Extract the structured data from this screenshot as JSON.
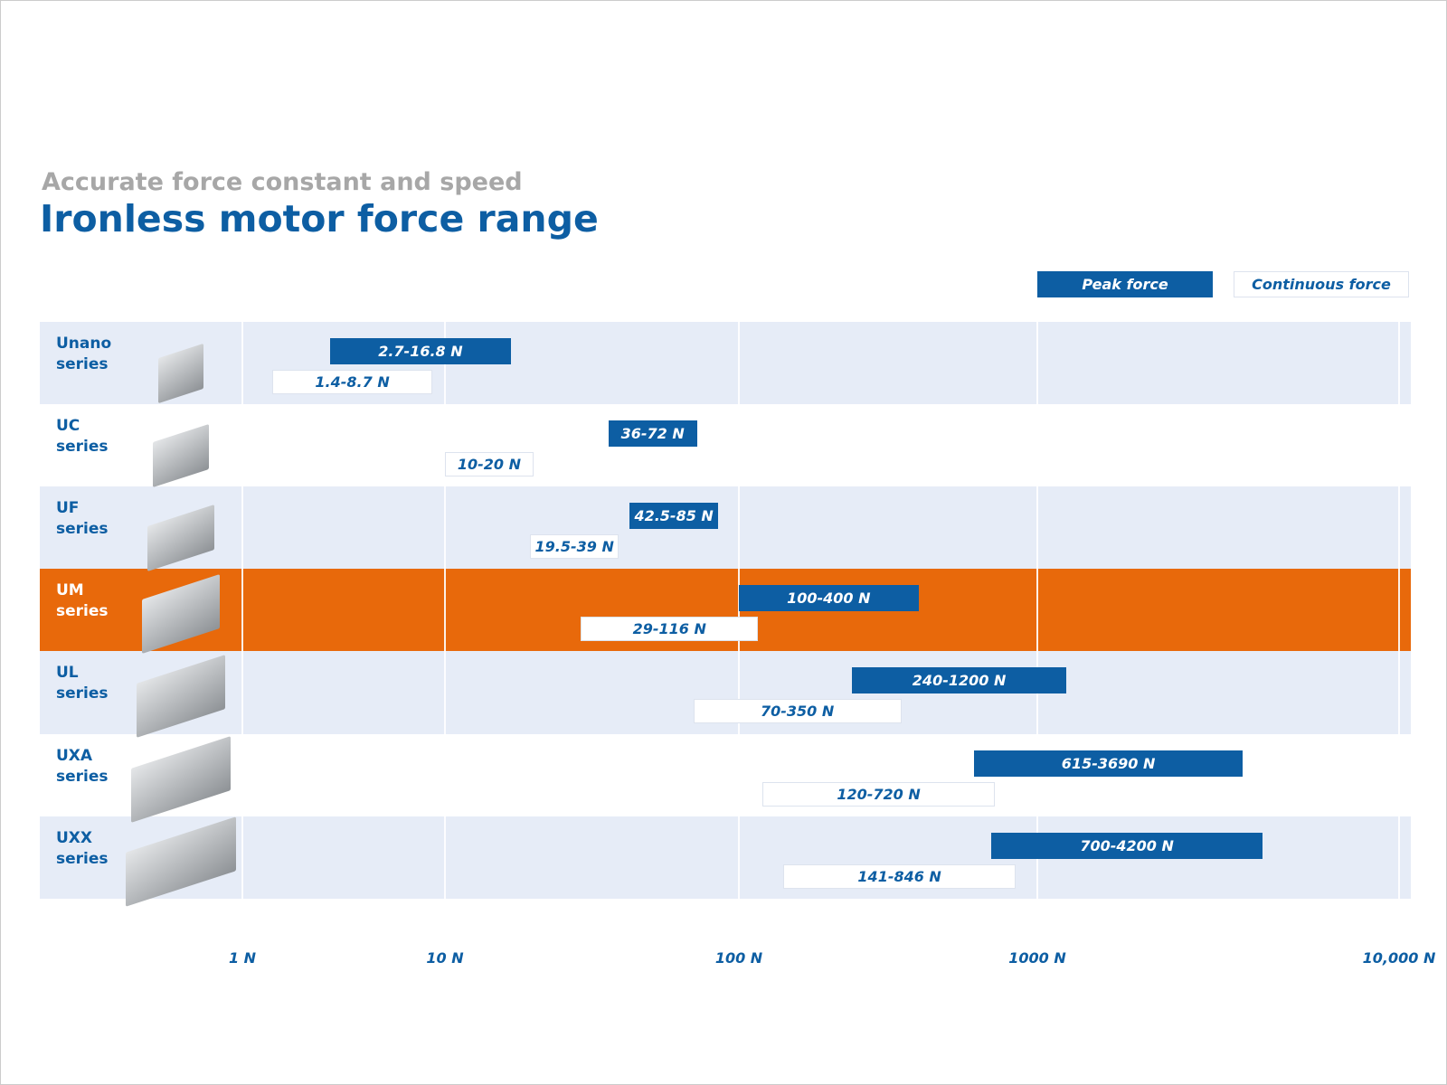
{
  "chart_data": {
    "type": "range-bar",
    "subtitle": "Accurate force constant and speed",
    "title": "Ironless motor force range",
    "categories": [
      "Unano series",
      "UC series",
      "UF series",
      "UM series",
      "UL series",
      "UXA series",
      "UXX series"
    ],
    "series": [
      {
        "name": "Peak force",
        "color": "#0d5ea3",
        "values": [
          [
            2.7,
            16.8
          ],
          [
            36,
            72
          ],
          [
            42.5,
            85
          ],
          [
            100,
            400
          ],
          [
            240,
            1200
          ],
          [
            615,
            3690
          ],
          [
            700,
            4200
          ]
        ],
        "value_labels": [
          "2.7-16.8 N",
          "36-72 N",
          "42.5-85 N",
          "100-400 N",
          "240-1200 N",
          "615-3690 N",
          "700-4200 N"
        ]
      },
      {
        "name": "Continuous force",
        "color": "#ffffff",
        "values": [
          [
            1.4,
            8.7
          ],
          [
            10,
            20
          ],
          [
            19.5,
            39
          ],
          [
            29,
            116
          ],
          [
            70,
            350
          ],
          [
            120,
            720
          ],
          [
            141,
            846
          ]
        ],
        "value_labels": [
          "1.4-8.7 N",
          "10-20 N",
          "19.5-39 N",
          "29-116 N",
          "70-350 N",
          "120-720 N",
          "141-846 N"
        ]
      }
    ],
    "xscale": "log",
    "xlim": [
      1,
      10000
    ],
    "xticks": [
      {
        "value": 1,
        "label": "1 N"
      },
      {
        "value": 10,
        "label": "10 N"
      },
      {
        "value": 100,
        "label": "100 N"
      },
      {
        "value": 1000,
        "label": "1000 N"
      },
      {
        "value": 10000,
        "label": "10,000 N"
      }
    ],
    "grid": true,
    "legend": "top-right",
    "highlight": {
      "category": 3,
      "color": "#e8690b"
    }
  }
}
